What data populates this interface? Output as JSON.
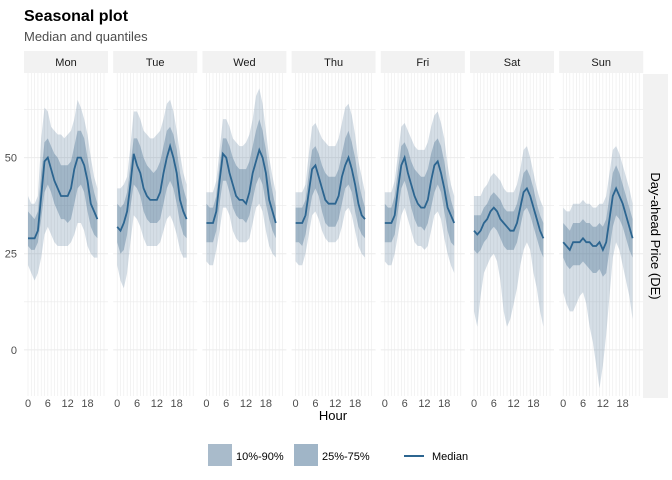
{
  "chart_data": {
    "type": "area",
    "title": "Seasonal plot",
    "subtitle": "Median and quantiles",
    "xlabel": "Hour",
    "ylabel": "Day-ahead Price (DE)",
    "panels": [
      "Mon",
      "Tue",
      "Wed",
      "Thu",
      "Fri",
      "Sat",
      "Sun"
    ],
    "x_ticks": [
      0,
      6,
      12,
      18
    ],
    "x_range": [
      0,
      23
    ],
    "y_ticks": [
      0,
      25,
      50
    ],
    "ylim": [
      -12,
      72
    ],
    "grid": true,
    "legend_position": "bottom",
    "legend": [
      {
        "label": "10%-90%",
        "kind": "band-outer"
      },
      {
        "label": "25%-75%",
        "kind": "band-inner"
      },
      {
        "label": "Median",
        "kind": "line"
      }
    ],
    "colors": {
      "outer_band": "#2c5a82",
      "inner_band": "#2c5a82",
      "median": "#2c6590",
      "strip_bg": "#f2f2f2",
      "grid": "#ebebeb"
    },
    "series": [
      {
        "name": "Mon",
        "median": [
          29,
          29,
          29,
          31,
          40,
          49,
          50,
          47,
          44,
          42,
          40,
          40,
          40,
          42,
          47,
          50,
          50,
          48,
          44,
          38,
          36,
          34
        ],
        "q25": [
          27,
          26,
          26,
          28,
          34,
          41,
          43,
          41,
          38,
          36,
          34,
          34,
          33,
          34,
          38,
          42,
          43,
          41,
          36,
          32,
          30,
          29
        ],
        "q75": [
          36,
          35,
          34,
          36,
          46,
          54,
          55,
          53,
          51,
          50,
          48,
          48,
          48,
          49,
          53,
          57,
          57,
          55,
          50,
          45,
          41,
          38
        ],
        "q10": [
          22,
          20,
          18,
          20,
          24,
          30,
          32,
          30,
          28,
          27,
          27,
          27,
          27,
          28,
          30,
          33,
          33,
          31,
          27,
          25,
          24,
          24
        ],
        "q90": [
          40,
          38,
          38,
          40,
          55,
          63,
          62,
          58,
          57,
          56,
          56,
          55,
          56,
          57,
          60,
          65,
          63,
          60,
          56,
          50,
          45,
          42
        ]
      },
      {
        "name": "Tue",
        "median": [
          32,
          31,
          33,
          36,
          43,
          51,
          48,
          46,
          42,
          40,
          39,
          39,
          39,
          41,
          46,
          50,
          53,
          50,
          46,
          39,
          36,
          34
        ],
        "q25": [
          28,
          25,
          26,
          30,
          37,
          43,
          42,
          40,
          36,
          34,
          33,
          33,
          33,
          34,
          38,
          42,
          44,
          42,
          38,
          33,
          30,
          29
        ],
        "q75": [
          38,
          37,
          38,
          41,
          48,
          55,
          55,
          53,
          50,
          48,
          47,
          46,
          47,
          49,
          53,
          57,
          58,
          56,
          52,
          46,
          42,
          39
        ],
        "q10": [
          22,
          18,
          16,
          20,
          28,
          35,
          34,
          32,
          29,
          27,
          27,
          27,
          27,
          28,
          31,
          34,
          35,
          33,
          30,
          26,
          24,
          24
        ],
        "q90": [
          42,
          42,
          43,
          45,
          53,
          62,
          62,
          60,
          57,
          56,
          55,
          55,
          56,
          57,
          60,
          64,
          65,
          62,
          57,
          51,
          46,
          43
        ]
      },
      {
        "name": "Wed",
        "median": [
          33,
          33,
          33,
          36,
          44,
          51,
          50,
          46,
          43,
          40,
          39,
          39,
          38,
          41,
          46,
          49,
          52,
          50,
          46,
          39,
          36,
          33
        ],
        "q25": [
          28,
          28,
          28,
          31,
          38,
          44,
          44,
          41,
          37,
          35,
          34,
          34,
          33,
          35,
          39,
          43,
          45,
          43,
          38,
          34,
          31,
          29
        ],
        "q75": [
          38,
          37,
          37,
          40,
          48,
          55,
          55,
          53,
          50,
          48,
          47,
          47,
          47,
          49,
          53,
          57,
          60,
          57,
          52,
          46,
          41,
          37
        ],
        "q10": [
          23,
          22,
          22,
          26,
          31,
          37,
          37,
          35,
          31,
          29,
          28,
          28,
          28,
          29,
          33,
          37,
          38,
          36,
          31,
          27,
          25,
          24
        ],
        "q90": [
          41,
          41,
          41,
          44,
          52,
          60,
          60,
          58,
          55,
          54,
          53,
          53,
          54,
          56,
          60,
          66,
          68,
          64,
          57,
          50,
          45,
          41
        ]
      },
      {
        "name": "Thu",
        "median": [
          33,
          33,
          33,
          35,
          41,
          47,
          48,
          45,
          42,
          39,
          38,
          38,
          38,
          40,
          45,
          48,
          50,
          47,
          43,
          38,
          35,
          34
        ],
        "q25": [
          28,
          28,
          27,
          30,
          35,
          40,
          42,
          40,
          36,
          33,
          32,
          32,
          32,
          34,
          38,
          42,
          43,
          41,
          36,
          32,
          30,
          29
        ],
        "q75": [
          37,
          37,
          37,
          39,
          46,
          52,
          53,
          51,
          48,
          46,
          45,
          45,
          45,
          47,
          51,
          55,
          57,
          54,
          50,
          44,
          40,
          37
        ],
        "q10": [
          23,
          22,
          22,
          25,
          30,
          35,
          36,
          34,
          31,
          29,
          28,
          28,
          28,
          29,
          32,
          36,
          37,
          35,
          31,
          27,
          25,
          24
        ],
        "q90": [
          41,
          41,
          41,
          43,
          51,
          58,
          59,
          57,
          55,
          54,
          53,
          53,
          53,
          55,
          59,
          63,
          64,
          61,
          56,
          49,
          45,
          41
        ]
      },
      {
        "name": "Fri",
        "median": [
          33,
          33,
          33,
          35,
          42,
          48,
          50,
          46,
          43,
          40,
          38,
          37,
          37,
          39,
          44,
          48,
          49,
          46,
          42,
          37,
          35,
          33
        ],
        "q25": [
          28,
          28,
          28,
          30,
          36,
          42,
          44,
          41,
          37,
          34,
          32,
          32,
          31,
          33,
          37,
          41,
          43,
          41,
          36,
          31,
          28,
          27
        ],
        "q75": [
          38,
          37,
          37,
          40,
          47,
          53,
          54,
          52,
          49,
          47,
          46,
          45,
          45,
          47,
          51,
          54,
          55,
          53,
          49,
          43,
          39,
          36
        ],
        "q10": [
          23,
          22,
          22,
          25,
          30,
          35,
          37,
          34,
          31,
          28,
          27,
          27,
          26,
          27,
          31,
          35,
          36,
          34,
          29,
          25,
          22,
          20
        ],
        "q90": [
          41,
          41,
          41,
          44,
          51,
          58,
          59,
          57,
          55,
          53,
          52,
          52,
          52,
          54,
          58,
          61,
          62,
          59,
          55,
          48,
          43,
          40
        ]
      },
      {
        "name": "Sat",
        "median": [
          31,
          30,
          31,
          33,
          34,
          36,
          37,
          36,
          34,
          33,
          32,
          31,
          31,
          33,
          37,
          41,
          42,
          40,
          37,
          34,
          31,
          29
        ],
        "q25": [
          26,
          25,
          26,
          28,
          29,
          31,
          32,
          31,
          29,
          27,
          26,
          26,
          26,
          28,
          32,
          36,
          37,
          35,
          32,
          29,
          26,
          24
        ],
        "q75": [
          35,
          35,
          35,
          37,
          38,
          40,
          41,
          40,
          39,
          37,
          36,
          36,
          36,
          38,
          42,
          46,
          47,
          45,
          42,
          38,
          35,
          33
        ],
        "q10": [
          10,
          6,
          14,
          20,
          22,
          24,
          25,
          23,
          18,
          10,
          6,
          8,
          12,
          16,
          22,
          26,
          28,
          26,
          20,
          16,
          10,
          6
        ],
        "q90": [
          40,
          40,
          40,
          42,
          43,
          45,
          46,
          45,
          44,
          42,
          41,
          41,
          41,
          43,
          47,
          52,
          53,
          50,
          46,
          42,
          39,
          37
        ]
      },
      {
        "name": "Sun",
        "median": [
          28,
          27,
          26,
          28,
          28,
          28,
          29,
          28,
          28,
          27,
          27,
          28,
          26,
          28,
          34,
          40,
          42,
          40,
          38,
          35,
          32,
          29
        ],
        "q25": [
          24,
          22,
          21,
          22,
          22,
          22,
          23,
          22,
          21,
          20,
          20,
          21,
          19,
          20,
          26,
          32,
          35,
          34,
          32,
          29,
          26,
          24
        ],
        "q75": [
          33,
          32,
          31,
          33,
          33,
          33,
          34,
          33,
          33,
          32,
          32,
          33,
          32,
          34,
          40,
          46,
          48,
          46,
          43,
          40,
          37,
          34
        ],
        "q10": [
          15,
          12,
          10,
          10,
          12,
          14,
          15,
          12,
          6,
          2,
          -4,
          -10,
          -4,
          4,
          14,
          24,
          28,
          26,
          22,
          18,
          14,
          8
        ],
        "q90": [
          37,
          36,
          36,
          38,
          38,
          38,
          39,
          38,
          38,
          37,
          37,
          38,
          38,
          40,
          46,
          52,
          53,
          51,
          48,
          45,
          42,
          38
        ]
      }
    ]
  }
}
